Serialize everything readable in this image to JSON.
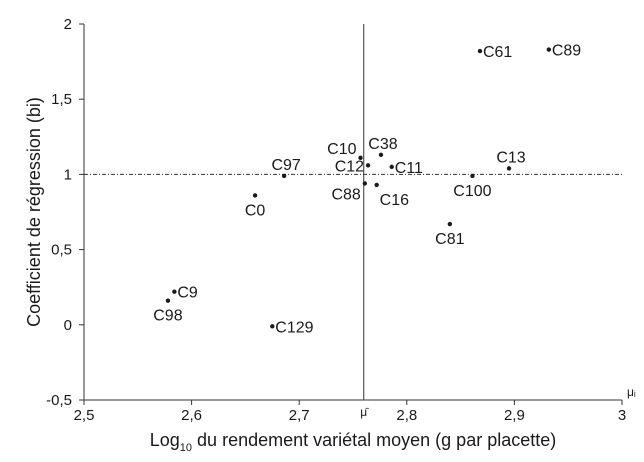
{
  "chart_data": {
    "type": "scatter",
    "title": "",
    "xlabel_main": "Log",
    "xlabel_sub": "10",
    "xlabel_rest": " du rendement variétal moyen (g par placette)",
    "ylabel": "Coefficient de régression (bi)",
    "xlim": [
      2.5,
      3
    ],
    "ylim": [
      -0.5,
      2
    ],
    "xticks": [
      {
        "value": 2.5,
        "label": "2,5"
      },
      {
        "value": 2.6,
        "label": "2,6"
      },
      {
        "value": 2.7,
        "label": "2,7"
      },
      {
        "value": 2.8,
        "label": "2,8"
      },
      {
        "value": 2.9,
        "label": "2,9"
      },
      {
        "value": 3.0,
        "label": "3"
      }
    ],
    "yticks": [
      {
        "value": -0.5,
        "label": "-0,5"
      },
      {
        "value": 0,
        "label": "0"
      },
      {
        "value": 0.5,
        "label": "0,5"
      },
      {
        "value": 1,
        "label": "1"
      },
      {
        "value": 1.5,
        "label": "1,5"
      },
      {
        "value": 2,
        "label": "2"
      }
    ],
    "mean_x": 2.76,
    "mean_x_label": "μ̄",
    "x_end_label": "μᵢ",
    "reference_y": 1,
    "grid": false,
    "points": [
      {
        "name": "C61",
        "x": 2.868,
        "y": 1.82,
        "anchor": "right"
      },
      {
        "name": "C89",
        "x": 2.932,
        "y": 1.83,
        "anchor": "right"
      },
      {
        "name": "C10",
        "x": 2.757,
        "y": 1.11,
        "anchor": "above-left"
      },
      {
        "name": "C38",
        "x": 2.776,
        "y": 1.13,
        "anchor": "above"
      },
      {
        "name": "C12",
        "x": 2.764,
        "y": 1.06,
        "anchor": "left"
      },
      {
        "name": "C11",
        "x": 2.786,
        "y": 1.05,
        "anchor": "right"
      },
      {
        "name": "C97",
        "x": 2.686,
        "y": 0.99,
        "anchor": "above"
      },
      {
        "name": "C13",
        "x": 2.895,
        "y": 1.04,
        "anchor": "above"
      },
      {
        "name": "C100",
        "x": 2.861,
        "y": 0.99,
        "anchor": "below"
      },
      {
        "name": "C88",
        "x": 2.761,
        "y": 0.94,
        "anchor": "left-below"
      },
      {
        "name": "C16",
        "x": 2.772,
        "y": 0.93,
        "anchor": "below-right"
      },
      {
        "name": "C0",
        "x": 2.659,
        "y": 0.86,
        "anchor": "below"
      },
      {
        "name": "C81",
        "x": 2.84,
        "y": 0.67,
        "anchor": "below"
      },
      {
        "name": "C9",
        "x": 2.584,
        "y": 0.22,
        "anchor": "right"
      },
      {
        "name": "C98",
        "x": 2.578,
        "y": 0.16,
        "anchor": "below"
      },
      {
        "name": "C129",
        "x": 2.675,
        "y": -0.01,
        "anchor": "right"
      }
    ]
  }
}
